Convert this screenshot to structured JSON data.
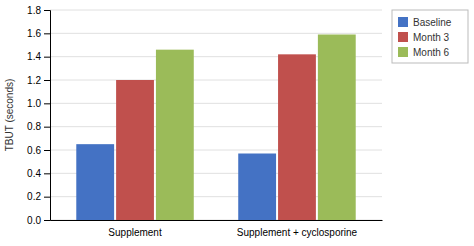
{
  "chart_data": {
    "type": "bar",
    "categories": [
      "Supplement",
      "Supplement + cyclosporine"
    ],
    "series": [
      {
        "name": "Baseline",
        "color": "#4472c4",
        "values": [
          0.65,
          0.57
        ]
      },
      {
        "name": "Month 3",
        "color": "#c0504d",
        "values": [
          1.2,
          1.42
        ]
      },
      {
        "name": "Month 6",
        "color": "#9bbb59",
        "values": [
          1.46,
          1.59
        ]
      }
    ],
    "ylabel": "TBUT (seconds)",
    "ylim": [
      0,
      1.8
    ],
    "yticks": [
      {
        "value": 0,
        "label": "0.0"
      },
      0.2,
      0.4,
      0.6,
      0.8,
      {
        "value": 1.0,
        "label": "1.0"
      },
      1.2,
      1.4,
      1.6,
      1.8
    ],
    "grid": true,
    "legend": "upper right"
  }
}
